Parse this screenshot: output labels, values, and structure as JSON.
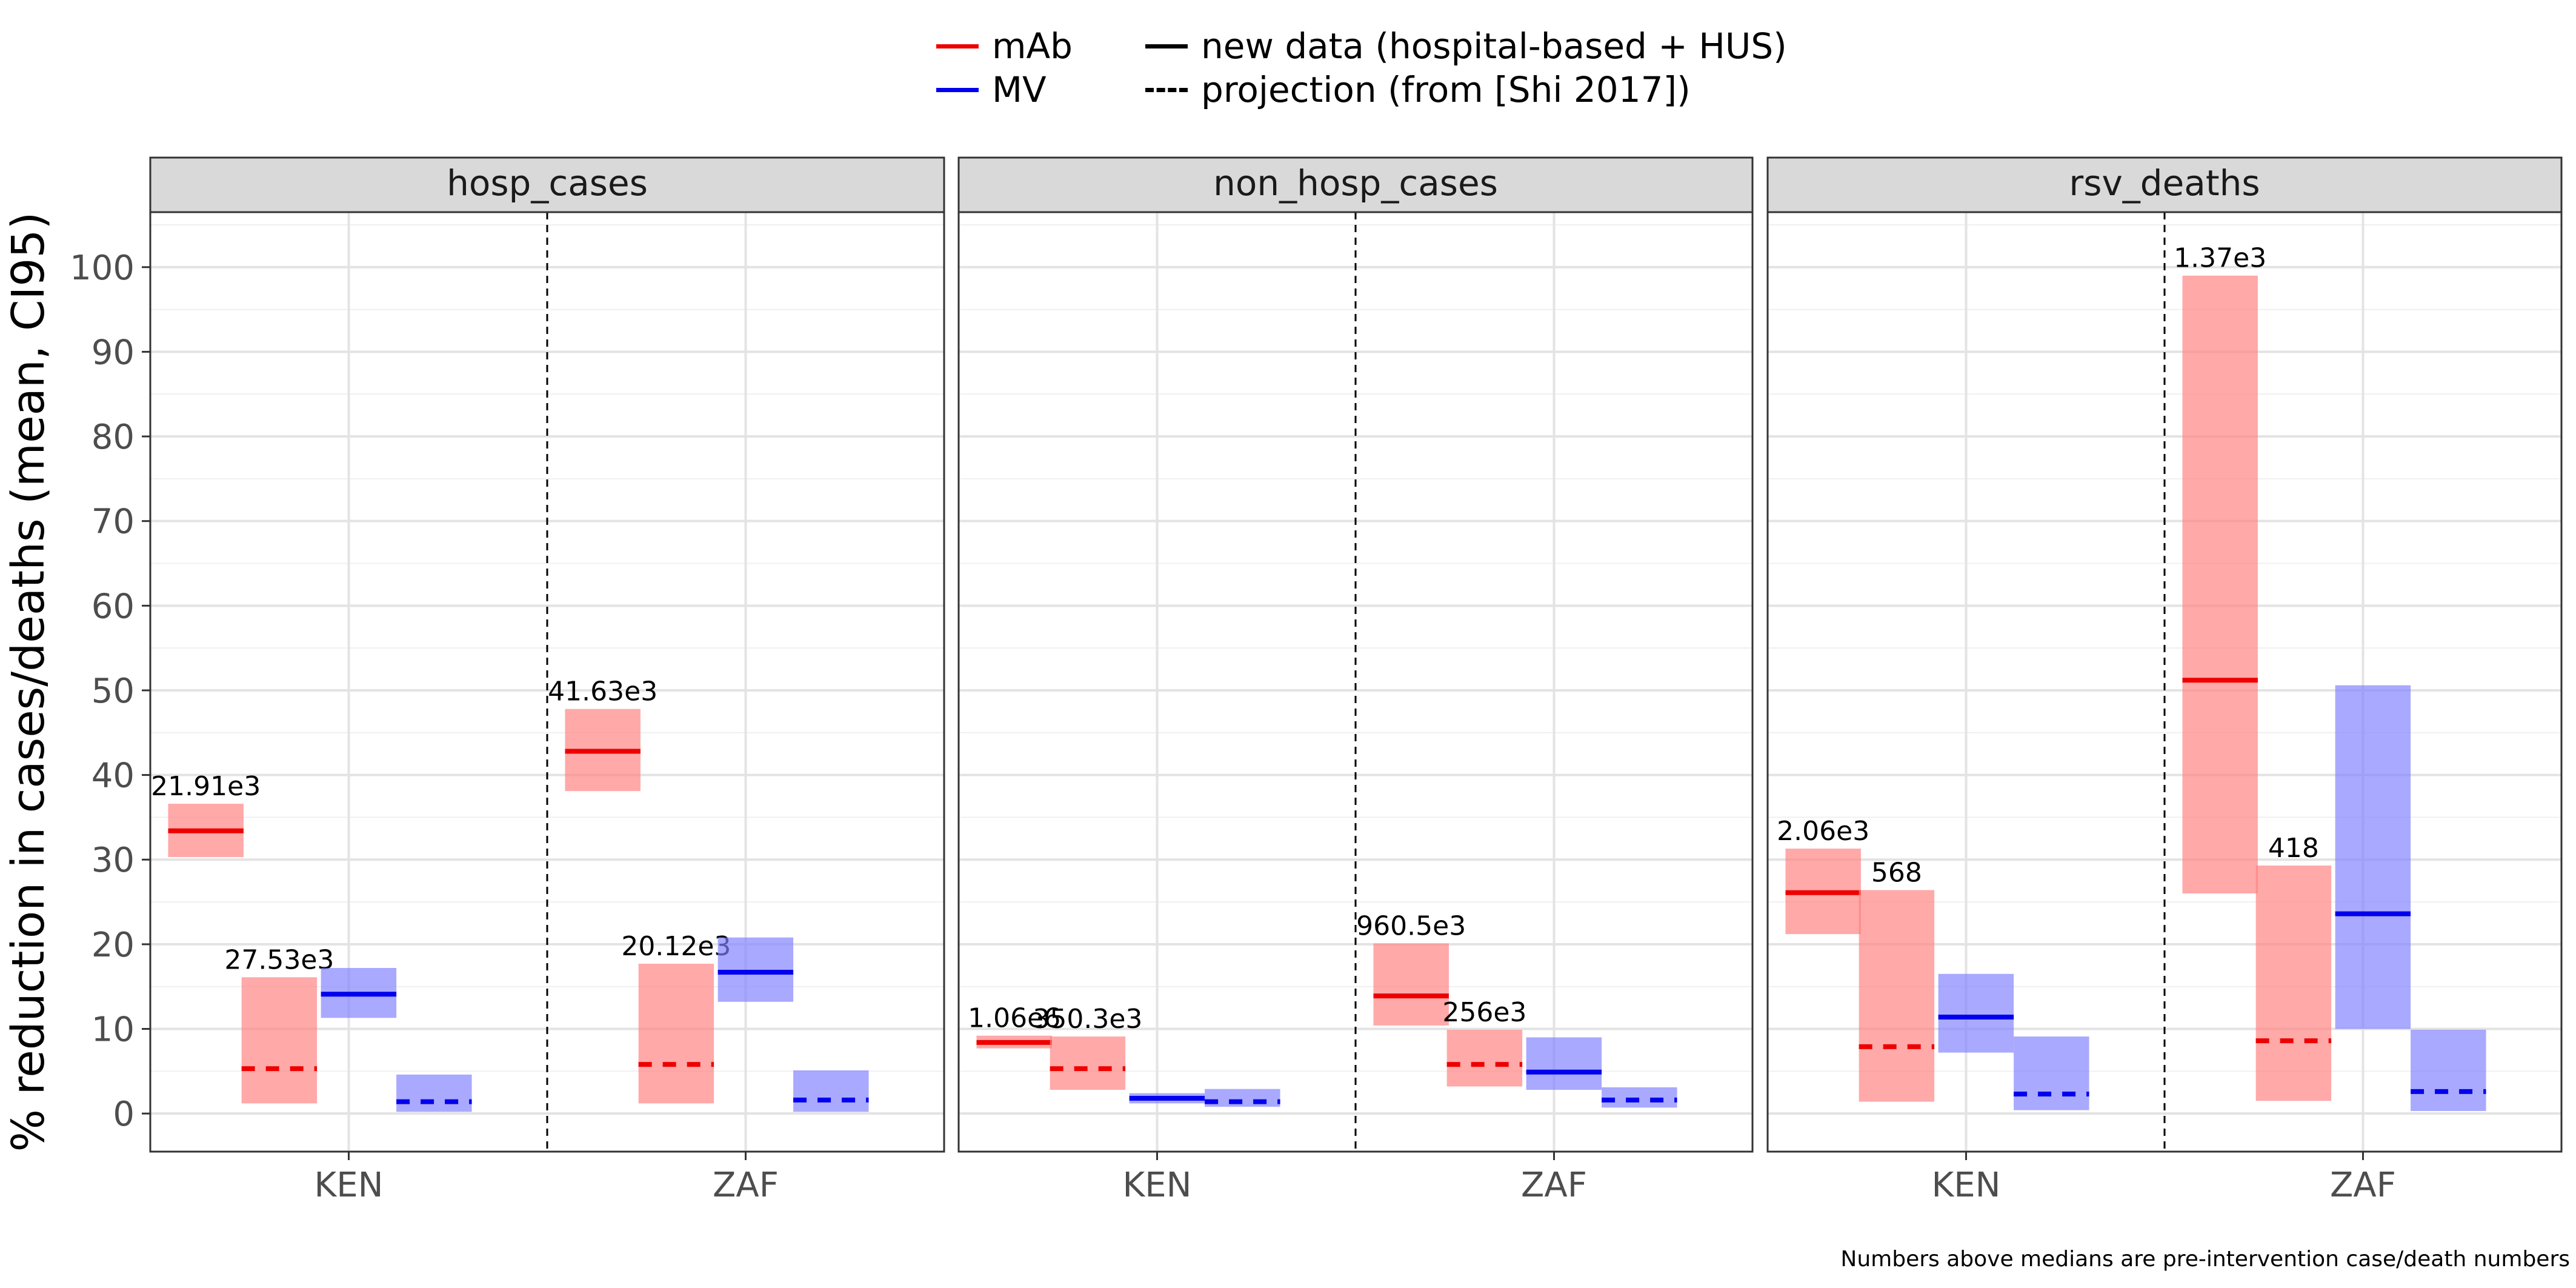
{
  "chart_data": {
    "type": "bar",
    "ylabel": "% reduction in cases/deaths (mean, CI95)",
    "ylim": [
      -4.5,
      106.5
    ],
    "yticks": [
      0,
      10,
      20,
      30,
      40,
      50,
      60,
      70,
      80,
      90,
      100
    ],
    "grid": true,
    "legend": {
      "placement": "top",
      "intervention_label_mab": "mAb",
      "intervention_label_mv": "MV",
      "line_label_solid": "new data (hospital-based + HUS)",
      "line_label_dashed": "projection (from [Shi 2017])"
    },
    "colors": {
      "mAb_line": "#ee0000",
      "mAb_fill": "#ff8080",
      "MV_line": "#0000ee",
      "MV_fill": "#8080ff",
      "strip_bg": "#d9d9d9"
    },
    "countries": [
      "KEN",
      "ZAF"
    ],
    "caption": "Numbers above medians are pre-intervention case/death numbers",
    "panels": [
      {
        "title": "hosp_cases",
        "boxes": [
          {
            "country": "KEN",
            "slot": 0,
            "intervention": "mAb",
            "source": "new",
            "low": 30.3,
            "high": 36.6,
            "mean": 33.4,
            "label": "21.91e3"
          },
          {
            "country": "KEN",
            "slot": 1,
            "intervention": "mAb",
            "source": "projection",
            "low": 1.2,
            "high": 16.1,
            "mean": 5.3,
            "label": "27.53e3"
          },
          {
            "country": "KEN",
            "slot": 2,
            "intervention": "MV",
            "source": "new",
            "low": 11.3,
            "high": 17.2,
            "mean": 14.1,
            "label": ""
          },
          {
            "country": "KEN",
            "slot": 3,
            "intervention": "MV",
            "source": "projection",
            "low": 0.2,
            "high": 4.6,
            "mean": 1.4,
            "label": ""
          },
          {
            "country": "ZAF",
            "slot": 0,
            "intervention": "mAb",
            "source": "new",
            "low": 38.1,
            "high": 47.8,
            "mean": 42.8,
            "label": "41.63e3"
          },
          {
            "country": "ZAF",
            "slot": 1,
            "intervention": "mAb",
            "source": "projection",
            "low": 1.2,
            "high": 17.7,
            "mean": 5.8,
            "label": "20.12e3"
          },
          {
            "country": "ZAF",
            "slot": 2,
            "intervention": "MV",
            "source": "new",
            "low": 13.2,
            "high": 20.8,
            "mean": 16.7,
            "label": ""
          },
          {
            "country": "ZAF",
            "slot": 3,
            "intervention": "MV",
            "source": "projection",
            "low": 0.2,
            "high": 5.1,
            "mean": 1.6,
            "label": ""
          }
        ]
      },
      {
        "title": "non_hosp_cases",
        "boxes": [
          {
            "country": "KEN",
            "slot": 0,
            "intervention": "mAb",
            "source": "new",
            "low": 7.7,
            "high": 9.2,
            "mean": 8.4,
            "label": "1.06e6"
          },
          {
            "country": "KEN",
            "slot": 1,
            "intervention": "mAb",
            "source": "projection",
            "low": 2.8,
            "high": 9.1,
            "mean": 5.3,
            "label": "350.3e3"
          },
          {
            "country": "KEN",
            "slot": 2,
            "intervention": "MV",
            "source": "new",
            "low": 1.2,
            "high": 2.4,
            "mean": 1.8,
            "label": ""
          },
          {
            "country": "KEN",
            "slot": 3,
            "intervention": "MV",
            "source": "projection",
            "low": 0.8,
            "high": 2.9,
            "mean": 1.4,
            "label": ""
          },
          {
            "country": "ZAF",
            "slot": 0,
            "intervention": "mAb",
            "source": "new",
            "low": 10.4,
            "high": 20.1,
            "mean": 13.9,
            "label": "960.5e3"
          },
          {
            "country": "ZAF",
            "slot": 1,
            "intervention": "mAb",
            "source": "projection",
            "low": 3.2,
            "high": 9.9,
            "mean": 5.8,
            "label": "256e3"
          },
          {
            "country": "ZAF",
            "slot": 2,
            "intervention": "MV",
            "source": "new",
            "low": 2.8,
            "high": 9.0,
            "mean": 4.9,
            "label": ""
          },
          {
            "country": "ZAF",
            "slot": 3,
            "intervention": "MV",
            "source": "projection",
            "low": 0.7,
            "high": 3.1,
            "mean": 1.6,
            "label": ""
          }
        ]
      },
      {
        "title": "rsv_deaths",
        "boxes": [
          {
            "country": "KEN",
            "slot": 0,
            "intervention": "mAb",
            "source": "new",
            "low": 21.2,
            "high": 31.3,
            "mean": 26.1,
            "label": "2.06e3"
          },
          {
            "country": "KEN",
            "slot": 1,
            "intervention": "mAb",
            "source": "projection",
            "low": 1.4,
            "high": 26.4,
            "mean": 7.9,
            "label": "568"
          },
          {
            "country": "KEN",
            "slot": 2,
            "intervention": "MV",
            "source": "new",
            "low": 7.2,
            "high": 16.5,
            "mean": 11.4,
            "label": ""
          },
          {
            "country": "KEN",
            "slot": 3,
            "intervention": "MV",
            "source": "projection",
            "low": 0.4,
            "high": 9.1,
            "mean": 2.3,
            "label": ""
          },
          {
            "country": "ZAF",
            "slot": 0,
            "intervention": "mAb",
            "source": "new",
            "low": 26.0,
            "high": 99.0,
            "mean": 51.2,
            "label": "1.37e3"
          },
          {
            "country": "ZAF",
            "slot": 1,
            "intervention": "mAb",
            "source": "projection",
            "low": 1.5,
            "high": 29.3,
            "mean": 8.6,
            "label": "418"
          },
          {
            "country": "ZAF",
            "slot": 2,
            "intervention": "MV",
            "source": "new",
            "low": 10.0,
            "high": 50.6,
            "mean": 23.6,
            "label": ""
          },
          {
            "country": "ZAF",
            "slot": 3,
            "intervention": "MV",
            "source": "projection",
            "low": 0.3,
            "high": 9.9,
            "mean": 2.6,
            "label": ""
          }
        ]
      }
    ]
  }
}
